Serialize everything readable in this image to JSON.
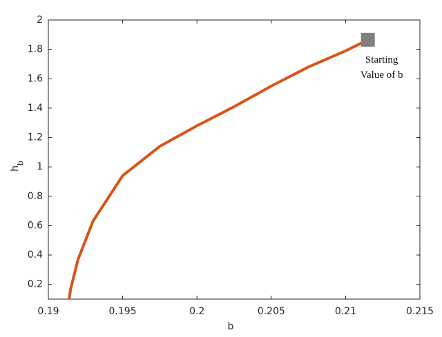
{
  "chart_data": {
    "type": "line",
    "xlabel": "b",
    "ylabel": {
      "main": "h",
      "sub": "b"
    },
    "x": [
      0.1914,
      0.1915,
      0.192,
      0.193,
      0.195,
      0.1975,
      0.2,
      0.2025,
      0.205,
      0.2075,
      0.21,
      0.2115
    ],
    "values": [
      0.1,
      0.17,
      0.37,
      0.63,
      0.94,
      1.14,
      1.28,
      1.41,
      1.55,
      1.68,
      1.79,
      1.865
    ],
    "color": "#d95319",
    "marker": {
      "x": 0.2115,
      "y": 1.865,
      "color": "#808080"
    },
    "annotation": [
      "Starting",
      "Value of b"
    ],
    "xlim": [
      0.19,
      0.215
    ],
    "xticks": [
      0.19,
      0.195,
      0.2,
      0.205,
      0.21,
      0.215
    ],
    "ylim": [
      0.1,
      2
    ],
    "yticks": [
      0.2,
      0.4,
      0.6,
      0.8,
      1,
      1.2,
      1.4,
      1.6,
      1.8,
      2
    ]
  }
}
